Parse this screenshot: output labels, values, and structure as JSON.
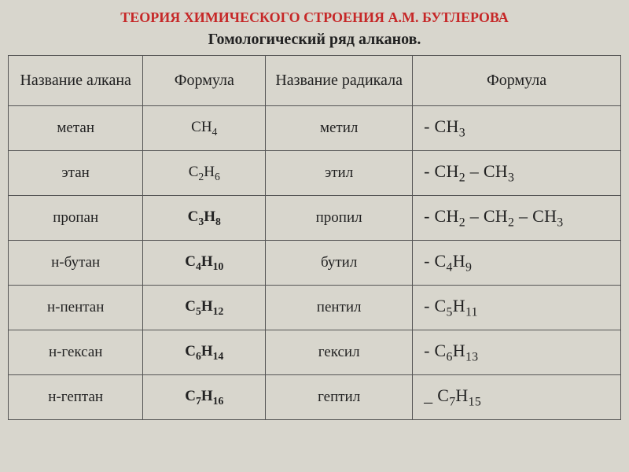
{
  "title": {
    "text": "ТЕОРИЯ ХИМИЧЕСКОГО СТРОЕНИЯ А.М. БУТЛЕРОВА",
    "color": "#c62828"
  },
  "subtitle": "Гомологический ряд алканов.",
  "headers": {
    "alkane_name": "Название алкана",
    "alkane_formula": "Формула",
    "radical_name": "Название радикала",
    "radical_formula": "Формула"
  },
  "rows": [
    {
      "alkane_name": "метан",
      "alkane_formula_prefix": "CH",
      "alkane_formula_sub": "4",
      "alkane_formula_bold": false,
      "radical_name": "метил",
      "radical_formula_html": "- CH<span class='sub'>3</span>",
      "radical_dash": "-"
    },
    {
      "alkane_name": "этан",
      "alkane_formula_html": "C<span class='sub'>2</span>H<span class='sub'>6</span>",
      "alkane_formula_bold": false,
      "radical_name": "этил",
      "radical_formula_html": "- CH<span class='sub'>2</span> – CH<span class='sub'>3</span>",
      "radical_dash": "-"
    },
    {
      "alkane_name": "пропан",
      "alkane_formula_html": "C<span class='sub'>3</span>H<span class='sub'>8</span>",
      "alkane_formula_bold": true,
      "radical_name": "пропил",
      "radical_formula_html": "- CH<span class='sub'>2</span> – CH<span class='sub'>2</span> – CH<span class='sub'>3</span>",
      "radical_dash": "-"
    },
    {
      "alkane_name": "н-бутан",
      "alkane_formula_html": "C<span class='sub'>4</span>H<span class='sub'>10</span>",
      "alkane_formula_bold": true,
      "radical_name": "бутил",
      "radical_formula_html": "- C<span class='sub'>4</span>H<span class='sub'>9</span>",
      "radical_dash": "-"
    },
    {
      "alkane_name": "н-пентан",
      "alkane_formula_html": "C<span class='sub'>5</span>H<span class='sub'>12</span>",
      "alkane_formula_bold": true,
      "radical_name": "пентил",
      "radical_formula_html": "- C<span class='sub'>5</span>H<span class='sub'>11</span>",
      "radical_dash": "-"
    },
    {
      "alkane_name": "н-гексан",
      "alkane_formula_html": "C<span class='sub'>6</span>H<span class='sub'>14</span>",
      "alkane_formula_bold": true,
      "radical_name": "гексил",
      "radical_formula_html": "- C<span class='sub'>6</span>H<span class='sub'>13</span>",
      "radical_dash": "-"
    },
    {
      "alkane_name": "н-гептан",
      "alkane_formula_html": "C<span class='sub'>7</span>H<span class='sub'>16</span>",
      "alkane_formula_bold": true,
      "radical_name": "гептил",
      "radical_formula_html": "_ C<span class='sub'>7</span>H<span class='sub'>15</span>",
      "radical_dash": "_"
    }
  ],
  "style": {
    "background_color": "#d8d6cd",
    "border_color": "#555555",
    "text_color": "#222222",
    "font_family": "Times New Roman",
    "title_fontsize": 18,
    "subtitle_fontsize": 20,
    "header_fontsize": 20,
    "cell_fontsize": 19,
    "radical_formula_fontsize": 22,
    "col_widths_pct": [
      22,
      20,
      24,
      34
    ]
  }
}
